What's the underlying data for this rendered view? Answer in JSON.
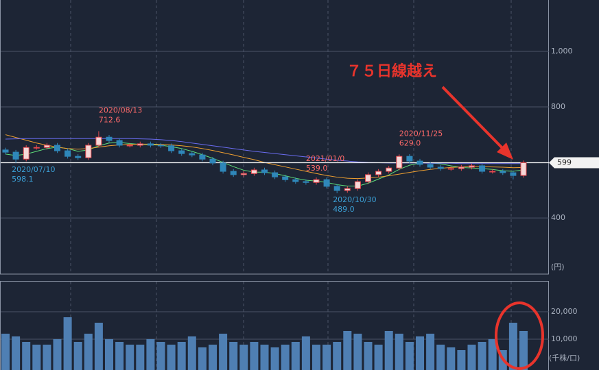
{
  "chart_data": [
    {
      "type": "candlestick",
      "open": [
        645,
        637,
        612,
        654,
        654,
        662,
        642,
        622,
        617,
        662,
        691,
        679,
        662,
        662,
        667,
        662,
        660,
        642,
        632,
        627,
        612,
        598,
        568,
        556,
        560,
        573,
        563,
        548,
        538,
        531,
        528,
        538,
        514,
        499,
        506,
        531,
        556,
        568,
        580,
        622,
        605,
        593,
        583,
        578,
        578,
        583,
        588,
        568,
        568,
        563,
        553
      ],
      "high": [
        653,
        645,
        662,
        662,
        670,
        670,
        650,
        630,
        670,
        712.6,
        699,
        687,
        670,
        675,
        675,
        670,
        668,
        650,
        640,
        635,
        620,
        606,
        576,
        568,
        581,
        581,
        571,
        556,
        546,
        539,
        546,
        546,
        522,
        514,
        539,
        564,
        576,
        588,
        629,
        630,
        613,
        601,
        591,
        586,
        591,
        596,
        596,
        576,
        576,
        571,
        607
      ],
      "low": [
        629,
        598.1,
        604,
        646,
        646,
        634,
        614,
        609,
        609,
        654,
        671,
        654,
        654,
        654,
        654,
        652,
        634,
        624,
        619,
        604,
        590,
        560,
        548,
        548,
        552,
        555,
        540,
        530,
        523,
        520,
        520,
        506,
        489,
        491,
        498,
        523,
        548,
        560,
        572,
        597,
        585,
        575,
        570,
        570,
        570,
        575,
        560,
        560,
        555,
        539,
        545
      ],
      "close": [
        637,
        612,
        654,
        654,
        662,
        642,
        622,
        617,
        662,
        691,
        679,
        662,
        662,
        667,
        662,
        660,
        642,
        632,
        627,
        612,
        598,
        568,
        556,
        560,
        573,
        563,
        548,
        538,
        531,
        528,
        538,
        514,
        499,
        506,
        531,
        556,
        568,
        580,
        622,
        605,
        593,
        583,
        578,
        578,
        583,
        588,
        568,
        568,
        563,
        553,
        599
      ],
      "up_color": "#e5484d",
      "down_color": "#2f87b9",
      "moving_averages": [
        {
          "color": "#5fe07a",
          "values": [
            630,
            625,
            630,
            640,
            650,
            655,
            650,
            640,
            645,
            660,
            670,
            672,
            668,
            665,
            664,
            662,
            657,
            650,
            640,
            628,
            615,
            600,
            585,
            572,
            565,
            565,
            560,
            552,
            543,
            536,
            533,
            528,
            520,
            515,
            515,
            525,
            540,
            555,
            575,
            590,
            598,
            598,
            595,
            588,
            582,
            580,
            578,
            575,
            570,
            568,
            573
          ]
        },
        {
          "color": "#f0a030",
          "values": [
            700,
            690,
            680,
            670,
            662,
            655,
            650,
            648,
            650,
            655,
            660,
            663,
            665,
            666,
            666,
            665,
            663,
            660,
            656,
            650,
            643,
            635,
            627,
            618,
            610,
            600,
            592,
            584,
            576,
            568,
            560,
            553,
            547,
            543,
            542,
            544,
            547,
            552,
            558,
            564,
            570,
            575,
            579,
            582,
            584,
            585,
            585,
            584,
            583,
            581,
            582
          ]
        },
        {
          "color": "#6a6cf0",
          "values": [
            684,
            685,
            686,
            686,
            686,
            686,
            686,
            686,
            686,
            686,
            686,
            686,
            686,
            685,
            684,
            682,
            679,
            675,
            670,
            665,
            660,
            655,
            650,
            645,
            640,
            636,
            632,
            628,
            624,
            620,
            616,
            612,
            608,
            605,
            602,
            600,
            599,
            598,
            598,
            598,
            598,
            597,
            597,
            597,
            596,
            596,
            596,
            596,
            596,
            596,
            596
          ]
        }
      ],
      "ylim": [
        198,
        1185
      ],
      "yticks": [
        400,
        800,
        {
          "value": 1000,
          "label": "1,000"
        }
      ],
      "y_unit": "(円)",
      "last_price": 599,
      "annotations": [
        {
          "date": "2020/08/13",
          "label": "712.6"
        },
        {
          "date": "2020/07/10",
          "label": "598.1"
        },
        {
          "date": "2020/10/30",
          "label": "489.0"
        },
        {
          "date": "2020/11/25",
          "label": "629.0"
        },
        {
          "date": "2021/01/0",
          "label": "539.0"
        }
      ],
      "callout": "７５日線越え"
    },
    {
      "type": "volume",
      "values": [
        12000,
        11000,
        9000,
        8000,
        8000,
        10000,
        18000,
        9000,
        12000,
        16000,
        10000,
        9000,
        8000,
        8000,
        10000,
        9000,
        8000,
        9000,
        11000,
        7000,
        8000,
        12000,
        9000,
        8000,
        9000,
        8000,
        7000,
        8000,
        9000,
        11000,
        8000,
        8000,
        9000,
        13000,
        12000,
        9000,
        8000,
        13000,
        12000,
        9000,
        11000,
        12000,
        8000,
        7000,
        6000,
        8000,
        9000,
        10000,
        6000,
        16000,
        13000
      ],
      "color": "#4f7fb3",
      "ylim": [
        0,
        30750
      ],
      "yticks": [
        {
          "value": 10000,
          "label": "10,000"
        },
        {
          "value": 20000,
          "label": "20,000"
        }
      ],
      "y_unit": "(千株/口)"
    }
  ]
}
